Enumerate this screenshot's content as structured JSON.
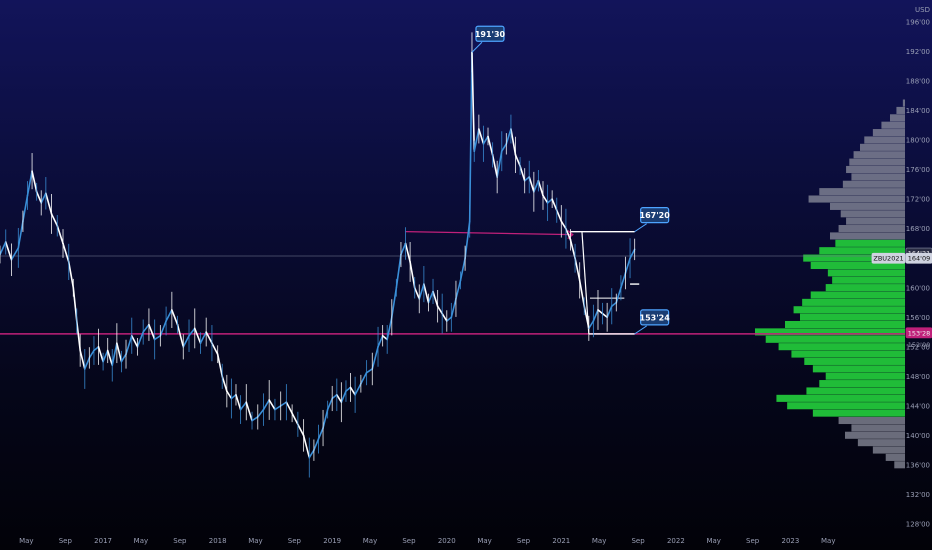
{
  "chart_data": {
    "type": "line",
    "currency": "USD",
    "y_unit_note": "price in points'32nds",
    "ylim": [
      128,
      196
    ],
    "y_ticks": [
      {
        "value": 196,
        "label": "196'00"
      },
      {
        "value": 192,
        "label": "192'00"
      },
      {
        "value": 188,
        "label": "188'00"
      },
      {
        "value": 184,
        "label": "184'00"
      },
      {
        "value": 180,
        "label": "180'00"
      },
      {
        "value": 176,
        "label": "176'00"
      },
      {
        "value": 172,
        "label": "172'00"
      },
      {
        "value": 168,
        "label": "168'00"
      },
      {
        "value": 164,
        "label": "164'00"
      },
      {
        "value": 160,
        "label": "160'00"
      },
      {
        "value": 156,
        "label": "156'00"
      },
      {
        "value": 152,
        "label": "152'00"
      },
      {
        "value": 148,
        "label": "148'00"
      },
      {
        "value": 144,
        "label": "144'00"
      },
      {
        "value": 140,
        "label": "140'00"
      },
      {
        "value": 136,
        "label": "136'00"
      },
      {
        "value": 132,
        "label": "132'00"
      },
      {
        "value": 128,
        "label": "128'00"
      }
    ],
    "x_ticks": [
      {
        "date": 2016.33,
        "label": "May"
      },
      {
        "date": 2016.67,
        "label": "Sep"
      },
      {
        "date": 2017.0,
        "label": "2017"
      },
      {
        "date": 2017.33,
        "label": "May"
      },
      {
        "date": 2017.67,
        "label": "Sep"
      },
      {
        "date": 2018.0,
        "label": "2018"
      },
      {
        "date": 2018.33,
        "label": "May"
      },
      {
        "date": 2018.67,
        "label": "Sep"
      },
      {
        "date": 2019.0,
        "label": "2019"
      },
      {
        "date": 2019.33,
        "label": "May"
      },
      {
        "date": 2019.67,
        "label": "Sep"
      },
      {
        "date": 2020.0,
        "label": "2020"
      },
      {
        "date": 2020.33,
        "label": "May"
      },
      {
        "date": 2020.67,
        "label": "Sep"
      },
      {
        "date": 2021.0,
        "label": "2021"
      },
      {
        "date": 2021.33,
        "label": "May"
      },
      {
        "date": 2021.67,
        "label": "Sep"
      },
      {
        "date": 2022.0,
        "label": "2022"
      },
      {
        "date": 2022.33,
        "label": "May"
      },
      {
        "date": 2022.67,
        "label": "Sep"
      },
      {
        "date": 2023.0,
        "label": "2023"
      },
      {
        "date": 2023.33,
        "label": "May"
      }
    ],
    "xlim": [
      2016.1,
      2024.0
    ],
    "series": [
      {
        "points": [
          [
            2016.1,
            164.5
          ],
          [
            2016.15,
            166.2
          ],
          [
            2016.2,
            163.8
          ],
          [
            2016.26,
            165.4
          ],
          [
            2016.3,
            169.0
          ],
          [
            2016.34,
            172.5
          ],
          [
            2016.38,
            175.8
          ],
          [
            2016.42,
            173.0
          ],
          [
            2016.46,
            171.5
          ],
          [
            2016.5,
            172.8
          ],
          [
            2016.55,
            170.0
          ],
          [
            2016.6,
            168.4
          ],
          [
            2016.65,
            166.0
          ],
          [
            2016.7,
            163.5
          ],
          [
            2016.74,
            160.0
          ],
          [
            2016.77,
            155.5
          ],
          [
            2016.8,
            151.5
          ],
          [
            2016.84,
            149.0
          ],
          [
            2016.88,
            150.5
          ],
          [
            2016.92,
            151.5
          ],
          [
            2016.96,
            152.0
          ],
          [
            2017.0,
            150.0
          ],
          [
            2017.04,
            151.5
          ],
          [
            2017.08,
            149.5
          ],
          [
            2017.12,
            152.5
          ],
          [
            2017.16,
            150.0
          ],
          [
            2017.2,
            151.0
          ],
          [
            2017.25,
            153.5
          ],
          [
            2017.3,
            152.0
          ],
          [
            2017.35,
            154.0
          ],
          [
            2017.4,
            155.0
          ],
          [
            2017.45,
            153.0
          ],
          [
            2017.5,
            153.5
          ],
          [
            2017.55,
            155.5
          ],
          [
            2017.6,
            157.0
          ],
          [
            2017.65,
            155.0
          ],
          [
            2017.7,
            152.0
          ],
          [
            2017.75,
            153.5
          ],
          [
            2017.8,
            154.5
          ],
          [
            2017.85,
            152.5
          ],
          [
            2017.9,
            154.0
          ],
          [
            2017.95,
            152.5
          ],
          [
            2018.0,
            151.0
          ],
          [
            2018.04,
            148.0
          ],
          [
            2018.08,
            146.0
          ],
          [
            2018.12,
            145.0
          ],
          [
            2018.16,
            145.5
          ],
          [
            2018.2,
            143.5
          ],
          [
            2018.25,
            144.5
          ],
          [
            2018.3,
            142.0
          ],
          [
            2018.35,
            142.5
          ],
          [
            2018.4,
            143.5
          ],
          [
            2018.45,
            144.8
          ],
          [
            2018.5,
            143.5
          ],
          [
            2018.55,
            144.0
          ],
          [
            2018.6,
            144.5
          ],
          [
            2018.65,
            143.0
          ],
          [
            2018.7,
            141.5
          ],
          [
            2018.75,
            140.0
          ],
          [
            2018.8,
            137.0
          ],
          [
            2018.84,
            138.0
          ],
          [
            2018.88,
            139.5
          ],
          [
            2018.92,
            141.0
          ],
          [
            2018.96,
            143.5
          ],
          [
            2019.0,
            145.0
          ],
          [
            2019.04,
            145.5
          ],
          [
            2019.08,
            144.5
          ],
          [
            2019.12,
            146.0
          ],
          [
            2019.16,
            146.5
          ],
          [
            2019.2,
            145.5
          ],
          [
            2019.25,
            147.0
          ],
          [
            2019.3,
            148.5
          ],
          [
            2019.35,
            149.0
          ],
          [
            2019.4,
            152.0
          ],
          [
            2019.44,
            153.5
          ],
          [
            2019.48,
            153.0
          ],
          [
            2019.52,
            156.0
          ],
          [
            2019.56,
            160.0
          ],
          [
            2019.6,
            164.5
          ],
          [
            2019.64,
            166.0
          ],
          [
            2019.68,
            163.5
          ],
          [
            2019.72,
            160.0
          ],
          [
            2019.76,
            158.5
          ],
          [
            2019.8,
            160.5
          ],
          [
            2019.84,
            158.0
          ],
          [
            2019.88,
            159.5
          ],
          [
            2019.92,
            157.5
          ],
          [
            2019.96,
            156.5
          ],
          [
            2020.0,
            155.5
          ],
          [
            2020.04,
            156.0
          ],
          [
            2020.08,
            158.5
          ],
          [
            2020.12,
            161.0
          ],
          [
            2020.16,
            164.0
          ],
          [
            2020.2,
            169.0
          ],
          [
            2020.22,
            191.9
          ],
          [
            2020.24,
            178.5
          ],
          [
            2020.28,
            181.5
          ],
          [
            2020.32,
            179.5
          ],
          [
            2020.36,
            180.5
          ],
          [
            2020.4,
            178.0
          ],
          [
            2020.44,
            175.0
          ],
          [
            2020.48,
            178.5
          ],
          [
            2020.52,
            179.5
          ],
          [
            2020.56,
            181.5
          ],
          [
            2020.6,
            178.0
          ],
          [
            2020.64,
            176.5
          ],
          [
            2020.68,
            174.5
          ],
          [
            2020.72,
            175.0
          ],
          [
            2020.76,
            173.0
          ],
          [
            2020.8,
            174.5
          ],
          [
            2020.84,
            172.5
          ],
          [
            2020.88,
            171.5
          ],
          [
            2020.92,
            172.0
          ],
          [
            2020.96,
            170.5
          ],
          [
            2021.0,
            169.0
          ],
          [
            2021.04,
            168.0
          ],
          [
            2021.08,
            166.5
          ],
          [
            2021.12,
            164.0
          ],
          [
            2021.16,
            161.0
          ],
          [
            2021.2,
            157.5
          ],
          [
            2021.24,
            154.5
          ],
          [
            2021.28,
            155.5
          ],
          [
            2021.32,
            157.0
          ],
          [
            2021.36,
            156.5
          ],
          [
            2021.4,
            156.0
          ],
          [
            2021.44,
            157.5
          ],
          [
            2021.48,
            158.0
          ],
          [
            2021.52,
            160.0
          ],
          [
            2021.56,
            162.0
          ],
          [
            2021.6,
            164.0
          ],
          [
            2021.64,
            165.2
          ]
        ]
      }
    ],
    "annotations": [
      {
        "label": "191'30",
        "price": 191.9,
        "date": 2020.22
      },
      {
        "label": "167'20",
        "price": 167.6,
        "date": 2021.64
      },
      {
        "label": "153'24",
        "price": 153.75,
        "date": 2021.64
      }
    ],
    "horizontal_lines": [
      {
        "name": "support",
        "price": 153.75,
        "color": "#c0207a"
      },
      {
        "name": "current",
        "price": 164.3,
        "color": "#6a6f88"
      }
    ],
    "price_tags": [
      {
        "label": "164'21",
        "price": 164.7
      },
      {
        "label": "ZBU2021",
        "price": 164.0
      },
      {
        "label": "164'09",
        "price": 164.0
      },
      {
        "label": "153'28",
        "price": 153.9
      },
      {
        "label": "152'00",
        "price": 152.3
      }
    ],
    "volume_profile": {
      "note": "horizontal volume histogram on the right, green within value area, grey outside",
      "rows": [
        [
          185,
          2
        ],
        [
          184,
          8
        ],
        [
          183,
          14
        ],
        [
          182,
          22
        ],
        [
          181,
          30
        ],
        [
          180,
          38
        ],
        [
          179,
          42
        ],
        [
          178,
          48
        ],
        [
          177,
          52
        ],
        [
          176,
          55
        ],
        [
          175,
          50
        ],
        [
          174,
          58
        ],
        [
          173,
          80
        ],
        [
          172,
          90
        ],
        [
          171,
          70
        ],
        [
          170,
          60
        ],
        [
          169,
          55
        ],
        [
          168,
          62
        ],
        [
          167,
          70
        ],
        [
          166,
          65
        ],
        [
          165,
          80
        ],
        [
          164,
          95
        ],
        [
          163,
          88
        ],
        [
          162,
          72
        ],
        [
          161,
          68
        ],
        [
          160,
          74
        ],
        [
          159,
          88
        ],
        [
          158,
          96
        ],
        [
          157,
          104
        ],
        [
          156,
          98
        ],
        [
          155,
          112
        ],
        [
          154,
          140
        ],
        [
          153,
          130
        ],
        [
          152,
          118
        ],
        [
          151,
          106
        ],
        [
          150,
          94
        ],
        [
          149,
          86
        ],
        [
          148,
          74
        ],
        [
          147,
          80
        ],
        [
          146,
          92
        ],
        [
          145,
          120
        ],
        [
          144,
          110
        ],
        [
          143,
          86
        ],
        [
          142,
          62
        ],
        [
          141,
          50
        ],
        [
          140,
          56
        ],
        [
          139,
          44
        ],
        [
          138,
          30
        ],
        [
          137,
          18
        ],
        [
          136,
          10
        ]
      ],
      "value_area": [
        143,
        166
      ]
    }
  },
  "labels": {
    "currency": "USD",
    "ticker": "ZBU2021"
  },
  "colors": {
    "line_up": "#3a8fd8",
    "line_down": "#ffffff",
    "magenta": "#c0207a",
    "profile_green": "#22c63a",
    "profile_grey": "#8c8f9e",
    "box_fill": "#1a3d73",
    "box_stroke": "#4ea4ff"
  }
}
